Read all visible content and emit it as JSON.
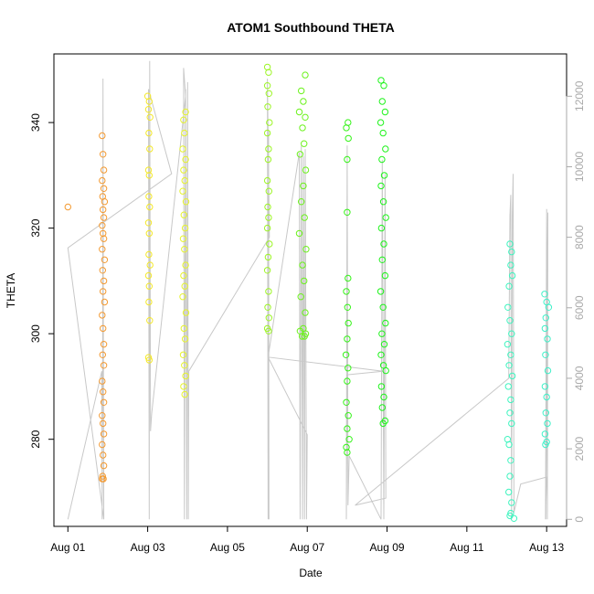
{
  "chart_data": {
    "type": "scatter",
    "title": "ATOM1 Southbound THETA",
    "xlabel": "Date",
    "ylabel": "THETA",
    "x_ticks": [
      "Aug 01",
      "Aug 03",
      "Aug 05",
      "Aug 07",
      "Aug 09",
      "Aug 11",
      "Aug 13"
    ],
    "y_ticks": [
      280,
      300,
      320,
      340
    ],
    "y2_ticks": [
      0,
      2000,
      4000,
      6000,
      8000,
      10000,
      12000
    ],
    "xlim_days": [
      0.65,
      13.5
    ],
    "ylim": [
      263.5,
      353
    ],
    "y2lim": [
      -200,
      13200
    ],
    "grid": false,
    "colors": {
      "depth_line": "#c8c8c8",
      "right_axis": "#a9a9a9",
      "aug01": "#f49a31",
      "aug03": "#f4e82a",
      "aug04": "#e6f32c",
      "aug06": "#9df526",
      "aug07": "#6cf21c",
      "aug08": "#35f318",
      "aug09": "#1ff31c",
      "aug12": "#3ff4bf",
      "aug13": "#3ff0c8"
    },
    "series": [
      {
        "color_key": "aug01",
        "points": [
          [
            1.0,
            324
          ],
          [
            1.86,
            337.5
          ],
          [
            1.88,
            334
          ],
          [
            1.9,
            331
          ],
          [
            1.86,
            329
          ],
          [
            1.9,
            327.5
          ],
          [
            1.87,
            326
          ],
          [
            1.92,
            325
          ],
          [
            1.88,
            323.5
          ],
          [
            1.9,
            322
          ],
          [
            1.86,
            320.5
          ],
          [
            1.88,
            319
          ],
          [
            1.9,
            318
          ],
          [
            1.86,
            316
          ],
          [
            1.92,
            314
          ],
          [
            1.87,
            312
          ],
          [
            1.9,
            310
          ],
          [
            1.88,
            308
          ],
          [
            1.92,
            306
          ],
          [
            1.86,
            303.5
          ],
          [
            1.88,
            301
          ],
          [
            1.9,
            298
          ],
          [
            1.87,
            296
          ],
          [
            1.9,
            294
          ],
          [
            1.86,
            291
          ],
          [
            1.88,
            289
          ],
          [
            1.9,
            287
          ],
          [
            1.86,
            284.5
          ],
          [
            1.88,
            283
          ],
          [
            1.9,
            281
          ],
          [
            1.86,
            279
          ],
          [
            1.88,
            277
          ],
          [
            1.9,
            275
          ],
          [
            1.87,
            273
          ],
          [
            1.86,
            272.5
          ],
          [
            1.89,
            272.5
          ]
        ]
      },
      {
        "color_key": "aug03",
        "points": [
          [
            3.0,
            345
          ],
          [
            3.04,
            344
          ],
          [
            3.02,
            342.5
          ],
          [
            3.06,
            341
          ],
          [
            3.03,
            338
          ],
          [
            3.05,
            335
          ],
          [
            3.02,
            331
          ],
          [
            3.04,
            330
          ],
          [
            3.03,
            326
          ],
          [
            3.05,
            324
          ],
          [
            3.02,
            321
          ],
          [
            3.04,
            319
          ],
          [
            3.03,
            315
          ],
          [
            3.06,
            313
          ],
          [
            3.02,
            311
          ],
          [
            3.04,
            309
          ],
          [
            3.03,
            306
          ],
          [
            3.05,
            302.5
          ],
          [
            3.02,
            295.5
          ],
          [
            3.04,
            295
          ]
        ]
      },
      {
        "color_key": "aug04",
        "points": [
          [
            3.95,
            342
          ],
          [
            3.9,
            340.5
          ],
          [
            3.92,
            338
          ],
          [
            3.88,
            335
          ],
          [
            3.95,
            333
          ],
          [
            3.9,
            331
          ],
          [
            3.93,
            329
          ],
          [
            3.88,
            327
          ],
          [
            3.96,
            325
          ],
          [
            3.91,
            322.5
          ],
          [
            3.94,
            320
          ],
          [
            3.89,
            318
          ],
          [
            3.92,
            316
          ],
          [
            3.95,
            313
          ],
          [
            3.9,
            311
          ],
          [
            3.93,
            309
          ],
          [
            3.88,
            307
          ],
          [
            3.96,
            304
          ],
          [
            3.91,
            301
          ],
          [
            3.94,
            299
          ],
          [
            3.89,
            296
          ],
          [
            3.92,
            294
          ],
          [
            3.95,
            292
          ],
          [
            3.9,
            290
          ],
          [
            3.93,
            288.5
          ]
        ]
      },
      {
        "color_key": "aug06",
        "points": [
          [
            6.0,
            350.5
          ],
          [
            6.03,
            349.5
          ],
          [
            6.0,
            347
          ],
          [
            6.04,
            345.5
          ],
          [
            6.01,
            343
          ],
          [
            6.05,
            340
          ],
          [
            6.0,
            338
          ],
          [
            6.03,
            335
          ],
          [
            6.02,
            333
          ],
          [
            6.0,
            329
          ],
          [
            6.04,
            327
          ],
          [
            6.01,
            324
          ],
          [
            6.03,
            322
          ],
          [
            6.0,
            320
          ],
          [
            6.05,
            317
          ],
          [
            6.02,
            314.5
          ],
          [
            6.0,
            312
          ],
          [
            6.03,
            308
          ],
          [
            6.01,
            305
          ],
          [
            6.04,
            303
          ],
          [
            6.0,
            301
          ],
          [
            6.03,
            300.5
          ]
        ]
      },
      {
        "color_key": "aug07",
        "points": [
          [
            6.95,
            349
          ],
          [
            6.85,
            346
          ],
          [
            6.9,
            344
          ],
          [
            6.8,
            342
          ],
          [
            6.95,
            341
          ],
          [
            6.88,
            339
          ],
          [
            6.92,
            336
          ],
          [
            6.82,
            334
          ],
          [
            6.96,
            331
          ],
          [
            6.9,
            328
          ],
          [
            6.85,
            325
          ],
          [
            6.93,
            322
          ],
          [
            6.8,
            319
          ],
          [
            6.97,
            316
          ],
          [
            6.88,
            313
          ],
          [
            6.92,
            310
          ],
          [
            6.84,
            307
          ],
          [
            6.95,
            304
          ],
          [
            6.9,
            301
          ],
          [
            6.82,
            300.5
          ],
          [
            6.96,
            300
          ],
          [
            6.87,
            299.5
          ],
          [
            6.93,
            299.5
          ]
        ]
      },
      {
        "color_key": "aug08",
        "points": [
          [
            8.02,
            340
          ],
          [
            7.98,
            339
          ],
          [
            8.03,
            337
          ],
          [
            8.0,
            333
          ],
          [
            8.0,
            323
          ],
          [
            8.02,
            310.5
          ],
          [
            7.98,
            308
          ],
          [
            8.01,
            305
          ],
          [
            8.03,
            302
          ],
          [
            8.0,
            299
          ],
          [
            7.97,
            296
          ],
          [
            8.02,
            293.5
          ],
          [
            8.0,
            291
          ],
          [
            7.98,
            287
          ],
          [
            8.03,
            284.5
          ],
          [
            8.0,
            282
          ],
          [
            8.05,
            280
          ],
          [
            7.98,
            278.5
          ],
          [
            8.0,
            277.5
          ]
        ]
      },
      {
        "color_key": "aug09",
        "points": [
          [
            8.85,
            348
          ],
          [
            8.92,
            347
          ],
          [
            8.88,
            344
          ],
          [
            8.95,
            342
          ],
          [
            8.84,
            340
          ],
          [
            8.9,
            338
          ],
          [
            8.96,
            335
          ],
          [
            8.87,
            333
          ],
          [
            8.93,
            330
          ],
          [
            8.85,
            328
          ],
          [
            8.91,
            325
          ],
          [
            8.97,
            322
          ],
          [
            8.86,
            320
          ],
          [
            8.92,
            317
          ],
          [
            8.88,
            314
          ],
          [
            8.95,
            311
          ],
          [
            8.84,
            308
          ],
          [
            8.9,
            305
          ],
          [
            8.96,
            302
          ],
          [
            8.87,
            300
          ],
          [
            8.93,
            298
          ],
          [
            8.85,
            296
          ],
          [
            8.91,
            294
          ],
          [
            8.97,
            293
          ],
          [
            8.86,
            290
          ],
          [
            8.92,
            288
          ],
          [
            8.88,
            286
          ],
          [
            8.95,
            283.5
          ],
          [
            8.9,
            283
          ]
        ]
      },
      {
        "color_key": "aug12",
        "points": [
          [
            12.08,
            317
          ],
          [
            12.12,
            315.5
          ],
          [
            12.1,
            313
          ],
          [
            12.14,
            311
          ],
          [
            12.06,
            309
          ],
          [
            12.03,
            305
          ],
          [
            12.08,
            302.5
          ],
          [
            12.12,
            300
          ],
          [
            12.02,
            298
          ],
          [
            12.1,
            296
          ],
          [
            12.06,
            294
          ],
          [
            12.14,
            292
          ],
          [
            12.04,
            290
          ],
          [
            12.1,
            287.5
          ],
          [
            12.08,
            285
          ],
          [
            12.12,
            283
          ],
          [
            12.02,
            280
          ],
          [
            12.06,
            279
          ],
          [
            12.1,
            276
          ],
          [
            12.08,
            273
          ],
          [
            12.05,
            270
          ],
          [
            12.12,
            268
          ],
          [
            12.1,
            266
          ],
          [
            12.08,
            265.5
          ],
          [
            12.18,
            265
          ]
        ]
      },
      {
        "color_key": "aug13",
        "points": [
          [
            12.95,
            307.5
          ],
          [
            13.0,
            306
          ],
          [
            13.05,
            305
          ],
          [
            12.98,
            303
          ],
          [
            12.96,
            301
          ],
          [
            13.02,
            299
          ],
          [
            12.97,
            296
          ],
          [
            13.03,
            293
          ],
          [
            12.96,
            290
          ],
          [
            13.0,
            288
          ],
          [
            12.98,
            285
          ],
          [
            13.02,
            283
          ],
          [
            12.96,
            281
          ],
          [
            13.0,
            279.5
          ],
          [
            12.97,
            279
          ]
        ]
      }
    ],
    "depth_profile": [
      [
        1.0,
        0
      ],
      [
        1.85,
        4200
      ],
      [
        1.86,
        0
      ],
      [
        1.87,
        4000
      ],
      [
        1.88,
        12500
      ],
      [
        1.89,
        5400
      ],
      [
        1.9,
        0
      ],
      [
        1.0,
        7700
      ],
      [
        3.6,
        9800
      ],
      [
        3.02,
        12200
      ],
      [
        3.04,
        0
      ],
      [
        3.05,
        13000
      ],
      [
        3.07,
        2500
      ],
      [
        3.1,
        3000
      ],
      [
        3.95,
        12000
      ],
      [
        3.9,
        12800
      ],
      [
        3.92,
        0
      ],
      [
        3.95,
        12200
      ],
      [
        3.98,
        0
      ],
      [
        4.0,
        12400
      ],
      [
        4.02,
        0
      ],
      [
        4.03,
        4200
      ],
      [
        6.05,
        8000
      ],
      [
        6.0,
        12500
      ],
      [
        6.02,
        0
      ],
      [
        6.03,
        11000
      ],
      [
        6.04,
        0
      ],
      [
        6.02,
        4600
      ],
      [
        6.8,
        10400
      ],
      [
        6.82,
        0
      ],
      [
        6.85,
        10600
      ],
      [
        6.88,
        0
      ],
      [
        6.9,
        10300
      ],
      [
        6.93,
        0
      ],
      [
        6.95,
        10500
      ],
      [
        6.98,
        0
      ],
      [
        7.0,
        2400
      ],
      [
        6.02,
        4600
      ],
      [
        8.9,
        4200
      ],
      [
        8.0,
        4100
      ],
      [
        7.98,
        0
      ],
      [
        8.0,
        10600
      ],
      [
        8.02,
        400
      ],
      [
        8.05,
        1800
      ],
      [
        8.85,
        0
      ],
      [
        8.88,
        10200
      ],
      [
        8.92,
        0
      ],
      [
        8.95,
        9800
      ],
      [
        8.97,
        600
      ],
      [
        8.2,
        400
      ],
      [
        12.05,
        4000
      ],
      [
        12.08,
        8600
      ],
      [
        12.1,
        9200
      ],
      [
        12.12,
        0
      ],
      [
        12.14,
        8600
      ],
      [
        12.16,
        9800
      ],
      [
        12.18,
        200
      ],
      [
        12.35,
        1000
      ],
      [
        13.0,
        1200
      ],
      [
        12.97,
        0
      ],
      [
        13.0,
        8800
      ],
      [
        13.02,
        0
      ],
      [
        13.03,
        8700
      ],
      [
        12.98,
        0
      ],
      [
        13.0,
        5400
      ]
    ]
  }
}
